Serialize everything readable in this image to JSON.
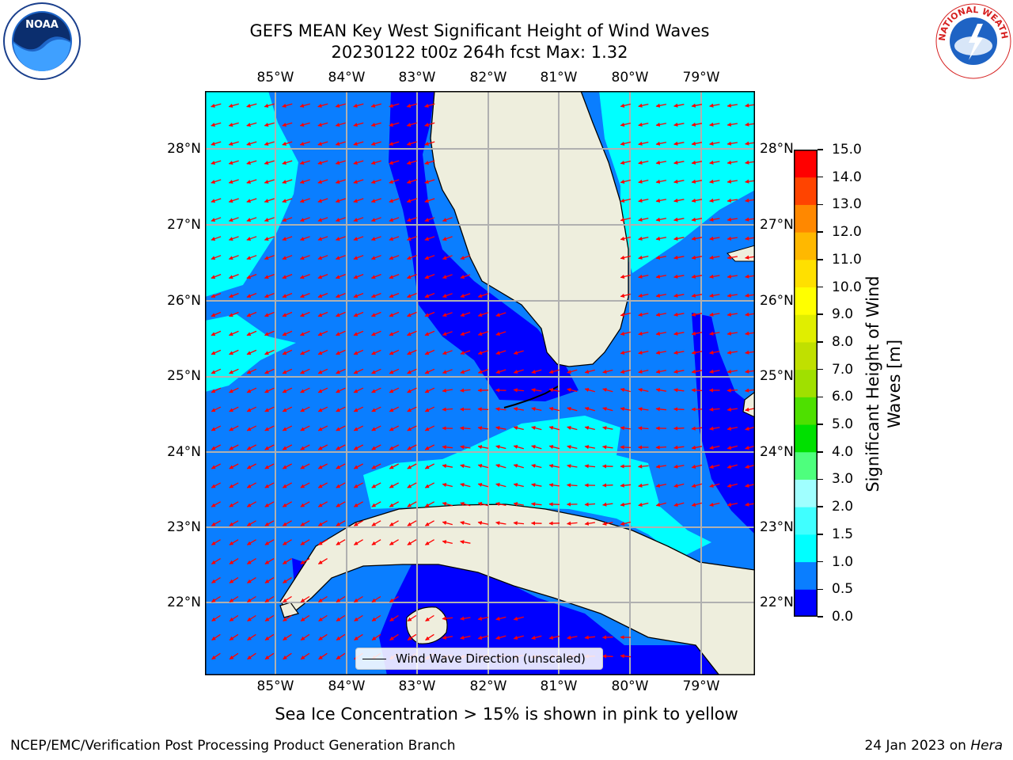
{
  "title": {
    "line1": "GEFS MEAN Key West Significant Height of Wind Waves",
    "line2": "20230122 t00z 264h fcst   Max: 1.32"
  },
  "map": {
    "lon_labels": [
      "85°W",
      "84°W",
      "83°W",
      "82°W",
      "81°W",
      "80°W",
      "79°W"
    ],
    "lat_labels": [
      "28°N",
      "27°N",
      "26°N",
      "25°N",
      "24°N",
      "23°N",
      "22°N"
    ],
    "lon_range": [
      -86.0,
      -78.3
    ],
    "lat_range": [
      21.0,
      28.75
    ],
    "land_color": "#eeeedd",
    "grid": true,
    "arrow_color": "#ff0000"
  },
  "legend": {
    "label": "Wind Wave Direction (unscaled)"
  },
  "colorbar": {
    "label_line1": "Significant Height of Wind",
    "label_line2": "Waves [m]",
    "ticks": [
      "0.0",
      "0.5",
      "1.0",
      "1.5",
      "2.0",
      "3.0",
      "4.0",
      "5.0",
      "6.0",
      "7.0",
      "8.0",
      "9.0",
      "10.0",
      "11.0",
      "12.0",
      "13.0",
      "14.0",
      "15.0"
    ],
    "colors": [
      "#0000ff",
      "#0a7eff",
      "#00ffff",
      "#40ffff",
      "#a0ffff",
      "#4eff7d",
      "#00e000",
      "#4ee000",
      "#a0e000",
      "#c0e000",
      "#e0ee00",
      "#ffff00",
      "#ffe000",
      "#ffb800",
      "#ff8800",
      "#ff4400",
      "#ff0000"
    ]
  },
  "notes": {
    "ice": "Sea Ice Concentration > 15% is shown in pink to yellow",
    "footer_left": "NCEP/EMC/Verification Post Processing Product Generation Branch",
    "footer_date": "24 Jan 2023 on ",
    "footer_host": "Hera"
  },
  "logos": {
    "noaa_text": "NOAA",
    "nws_text": "NATIONAL WEATHER SERVICE"
  }
}
